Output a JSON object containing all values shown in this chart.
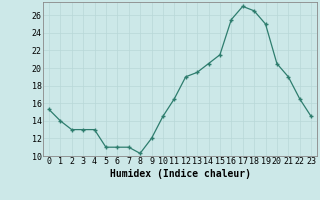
{
  "x": [
    0,
    1,
    2,
    3,
    4,
    5,
    6,
    7,
    8,
    9,
    10,
    11,
    12,
    13,
    14,
    15,
    16,
    17,
    18,
    19,
    20,
    21,
    22,
    23
  ],
  "y": [
    15.3,
    14.0,
    13.0,
    13.0,
    13.0,
    11.0,
    11.0,
    11.0,
    10.3,
    12.0,
    14.5,
    16.5,
    19.0,
    19.5,
    20.5,
    21.5,
    25.5,
    27.0,
    26.5,
    25.0,
    20.5,
    19.0,
    16.5,
    14.5
  ],
  "xlabel": "Humidex (Indice chaleur)",
  "ylim": [
    10,
    27
  ],
  "yticks": [
    10,
    12,
    14,
    16,
    18,
    20,
    22,
    24,
    26
  ],
  "xticks": [
    0,
    1,
    2,
    3,
    4,
    5,
    6,
    7,
    8,
    9,
    10,
    11,
    12,
    13,
    14,
    15,
    16,
    17,
    18,
    19,
    20,
    21,
    22,
    23
  ],
  "line_color": "#2e7d6e",
  "marker_color": "#2e7d6e",
  "bg_color": "#cce8e8",
  "grid_color": "#b8d8d8",
  "xlabel_fontsize": 7,
  "tick_fontsize": 6
}
